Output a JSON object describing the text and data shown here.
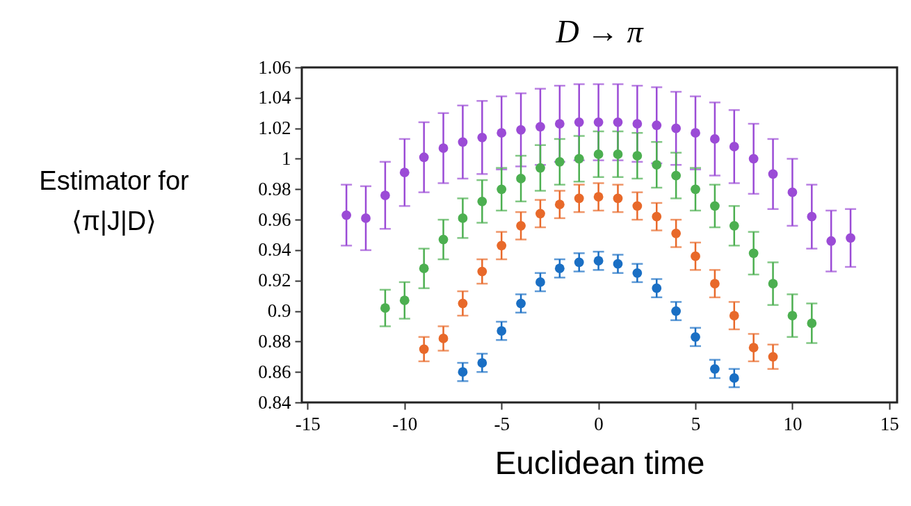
{
  "chart_data": {
    "type": "scatter",
    "title": "D → π",
    "xlabel": "Euclidean time",
    "ylabel": "Estimator for\n⟨π|J|D⟩",
    "xlim": [
      -15.3,
      15.4
    ],
    "xticks": [
      -15,
      -10,
      -5,
      0,
      5,
      10,
      15
    ],
    "ylim": [
      0.84,
      1.06
    ],
    "yticks": [
      0.84,
      0.86,
      0.88,
      0.9,
      0.92,
      0.94,
      0.96,
      0.98,
      1,
      1.02,
      1.04,
      1.06
    ],
    "grid": false,
    "legend": false,
    "marker": "circle",
    "series": [
      {
        "color": "#9b4bd6",
        "x": [
          -13,
          -12,
          -11,
          -10,
          -9,
          -8,
          -7,
          -6,
          -5,
          -4,
          -3,
          -2,
          -1,
          0,
          1,
          2,
          3,
          4,
          5,
          6,
          7,
          8,
          9,
          10,
          11,
          12,
          13
        ],
        "values": [
          0.963,
          0.961,
          0.976,
          0.991,
          1.001,
          1.007,
          1.011,
          1.014,
          1.017,
          1.019,
          1.021,
          1.023,
          1.024,
          1.024,
          1.024,
          1.023,
          1.022,
          1.02,
          1.017,
          1.013,
          1.008,
          1.0,
          0.99,
          0.978,
          0.962,
          0.946,
          0.948
        ],
        "errors": [
          0.02,
          0.021,
          0.022,
          0.022,
          0.023,
          0.023,
          0.024,
          0.024,
          0.024,
          0.024,
          0.025,
          0.025,
          0.025,
          0.025,
          0.025,
          0.025,
          0.025,
          0.024,
          0.024,
          0.024,
          0.024,
          0.023,
          0.023,
          0.022,
          0.021,
          0.02,
          0.019
        ]
      },
      {
        "color": "#4caf50",
        "x": [
          -11,
          -10,
          -9,
          -8,
          -7,
          -6,
          -5,
          -4,
          -3,
          -2,
          -1,
          0,
          1,
          2,
          3,
          4,
          5,
          6,
          7,
          8,
          9,
          10,
          11
        ],
        "values": [
          0.902,
          0.907,
          0.928,
          0.947,
          0.961,
          0.972,
          0.98,
          0.987,
          0.994,
          0.998,
          1.0,
          1.003,
          1.003,
          1.002,
          0.996,
          0.989,
          0.98,
          0.969,
          0.956,
          0.938,
          0.918,
          0.897,
          0.892
        ],
        "errors": [
          0.012,
          0.012,
          0.013,
          0.013,
          0.013,
          0.014,
          0.014,
          0.015,
          0.015,
          0.015,
          0.015,
          0.015,
          0.015,
          0.015,
          0.015,
          0.015,
          0.014,
          0.014,
          0.013,
          0.014,
          0.014,
          0.014,
          0.013
        ]
      },
      {
        "color": "#e8692a",
        "x": [
          -9,
          -8,
          -7,
          -6,
          -5,
          -4,
          -3,
          -2,
          -1,
          0,
          1,
          2,
          3,
          4,
          5,
          6,
          7,
          8,
          9
        ],
        "values": [
          0.875,
          0.882,
          0.905,
          0.926,
          0.943,
          0.956,
          0.964,
          0.97,
          0.974,
          0.975,
          0.974,
          0.969,
          0.962,
          0.951,
          0.936,
          0.918,
          0.897,
          0.876,
          0.87
        ],
        "errors": [
          0.008,
          0.008,
          0.008,
          0.008,
          0.009,
          0.009,
          0.009,
          0.009,
          0.009,
          0.009,
          0.009,
          0.009,
          0.009,
          0.009,
          0.009,
          0.009,
          0.009,
          0.009,
          0.008
        ]
      },
      {
        "color": "#1a6fc4",
        "x": [
          -7,
          -6,
          -5,
          -4,
          -3,
          -2,
          -1,
          0,
          1,
          2,
          3,
          4,
          5,
          6,
          7
        ],
        "values": [
          0.86,
          0.866,
          0.887,
          0.905,
          0.919,
          0.928,
          0.932,
          0.933,
          0.931,
          0.925,
          0.915,
          0.9,
          0.883,
          0.862,
          0.856
        ],
        "errors": [
          0.006,
          0.006,
          0.006,
          0.006,
          0.006,
          0.006,
          0.006,
          0.006,
          0.006,
          0.006,
          0.006,
          0.006,
          0.006,
          0.006,
          0.006
        ]
      }
    ]
  }
}
